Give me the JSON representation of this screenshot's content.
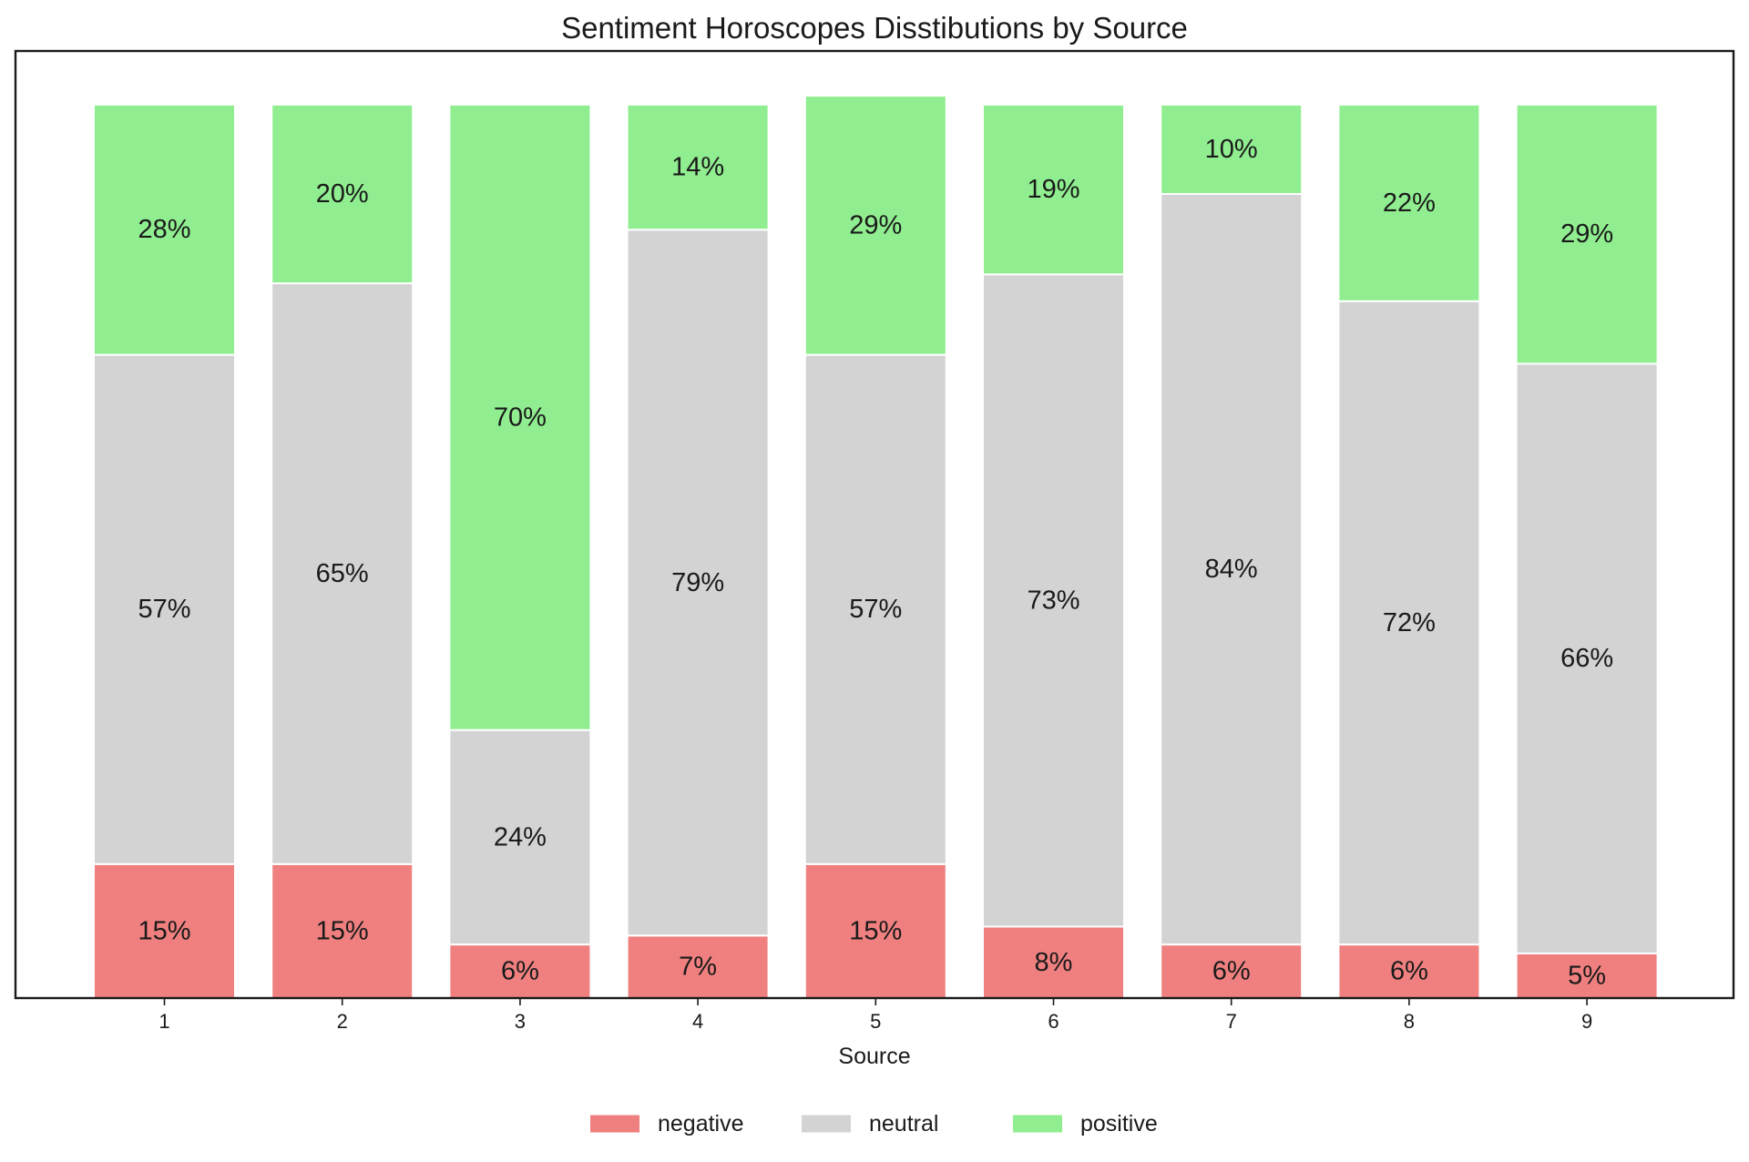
{
  "chart_data": {
    "type": "bar",
    "stacked": true,
    "title": "Sentiment Horoscopes Disstibutions by Source",
    "xlabel": "Source",
    "ylabel": "",
    "categories": [
      "1",
      "2",
      "3",
      "4",
      "5",
      "6",
      "7",
      "8",
      "9"
    ],
    "ylim": [
      0,
      106
    ],
    "grid": false,
    "legend_position": "bottom-center",
    "series": [
      {
        "name": "negative",
        "color": "#f08080",
        "values": [
          15,
          15,
          6,
          7,
          15,
          8,
          6,
          6,
          5
        ],
        "labels": [
          "15%",
          "15%",
          "6%",
          "7%",
          "15%",
          "8%",
          "6%",
          "6%",
          "5%"
        ]
      },
      {
        "name": "neutral",
        "color": "#d3d3d3",
        "values": [
          57,
          65,
          24,
          79,
          57,
          73,
          84,
          72,
          66
        ],
        "labels": [
          "57%",
          "65%",
          "24%",
          "79%",
          "57%",
          "73%",
          "84%",
          "72%",
          "66%"
        ]
      },
      {
        "name": "positive",
        "color": "#90ee90",
        "values": [
          28,
          20,
          70,
          14,
          29,
          19,
          10,
          22,
          29
        ],
        "labels": [
          "28%",
          "20%",
          "70%",
          "14%",
          "29%",
          "19%",
          "10%",
          "22%",
          "29%"
        ]
      }
    ]
  }
}
